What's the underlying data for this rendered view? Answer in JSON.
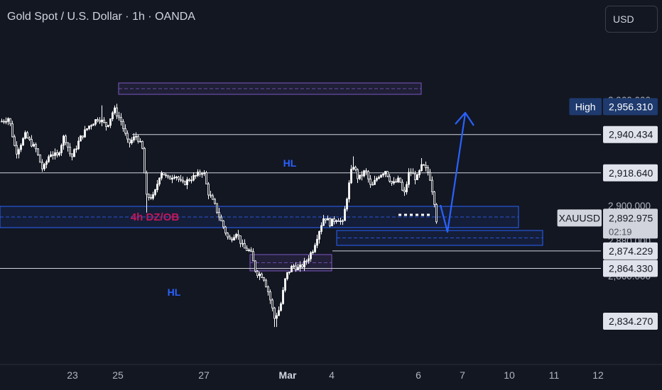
{
  "header": {
    "title": "Gold Spot / U.S. Dollar · 1h · OANDA",
    "currency_button": "USD"
  },
  "chart_data": {
    "type": "candlestick",
    "symbol": "XAUUSD",
    "timeframe": "1h",
    "ylim": [
      2830,
      2966
    ],
    "x_tick_labels": [
      {
        "label": "23",
        "bold": false
      },
      {
        "label": "25",
        "bold": false
      },
      {
        "label": "27",
        "bold": false
      },
      {
        "label": "Mar",
        "bold": true
      },
      {
        "label": "4",
        "bold": false
      },
      {
        "label": "6",
        "bold": false
      },
      {
        "label": "7",
        "bold": false
      },
      {
        "label": "10",
        "bold": false
      },
      {
        "label": "11",
        "bold": false
      },
      {
        "label": "12",
        "bold": false
      }
    ],
    "y_tick_labels": [
      {
        "label": "2,960.000",
        "value": 2960
      },
      {
        "label": "2,900.000",
        "value": 2900
      },
      {
        "label": "2,880.000",
        "value": 2880
      },
      {
        "label": "2,860.000",
        "value": 2860
      }
    ],
    "price_labels": [
      {
        "label": "2,956.310",
        "value": 2956.31,
        "tag": "High",
        "style": "high"
      },
      {
        "label": "2,940.434",
        "value": 2940.434,
        "style": "level"
      },
      {
        "label": "2,918.640",
        "value": 2918.64,
        "style": "level"
      },
      {
        "label": "2,892.975",
        "value": 2892.975,
        "tag": "XAUUSD",
        "sublabel": "02:19",
        "style": "current"
      },
      {
        "label": "2,874.229",
        "value": 2874.229,
        "style": "level"
      },
      {
        "label": "2,864.330",
        "value": 2864.33,
        "style": "level"
      },
      {
        "label": "2,834.270",
        "value": 2834.27,
        "style": "level"
      }
    ],
    "annotations": [
      {
        "text": "HL",
        "color": "#2962ff"
      },
      {
        "text": "HL",
        "color": "#2962ff"
      },
      {
        "text": "4h DZ/OB",
        "color": "#c2185b"
      }
    ],
    "colors": {
      "background": "#131722",
      "candles": "#ffffff",
      "zones_blue": "#2962ff",
      "zones_purple": "#7e57c2",
      "arrow": "#2962ff",
      "high_label_bg": "#1e3a6e"
    }
  }
}
